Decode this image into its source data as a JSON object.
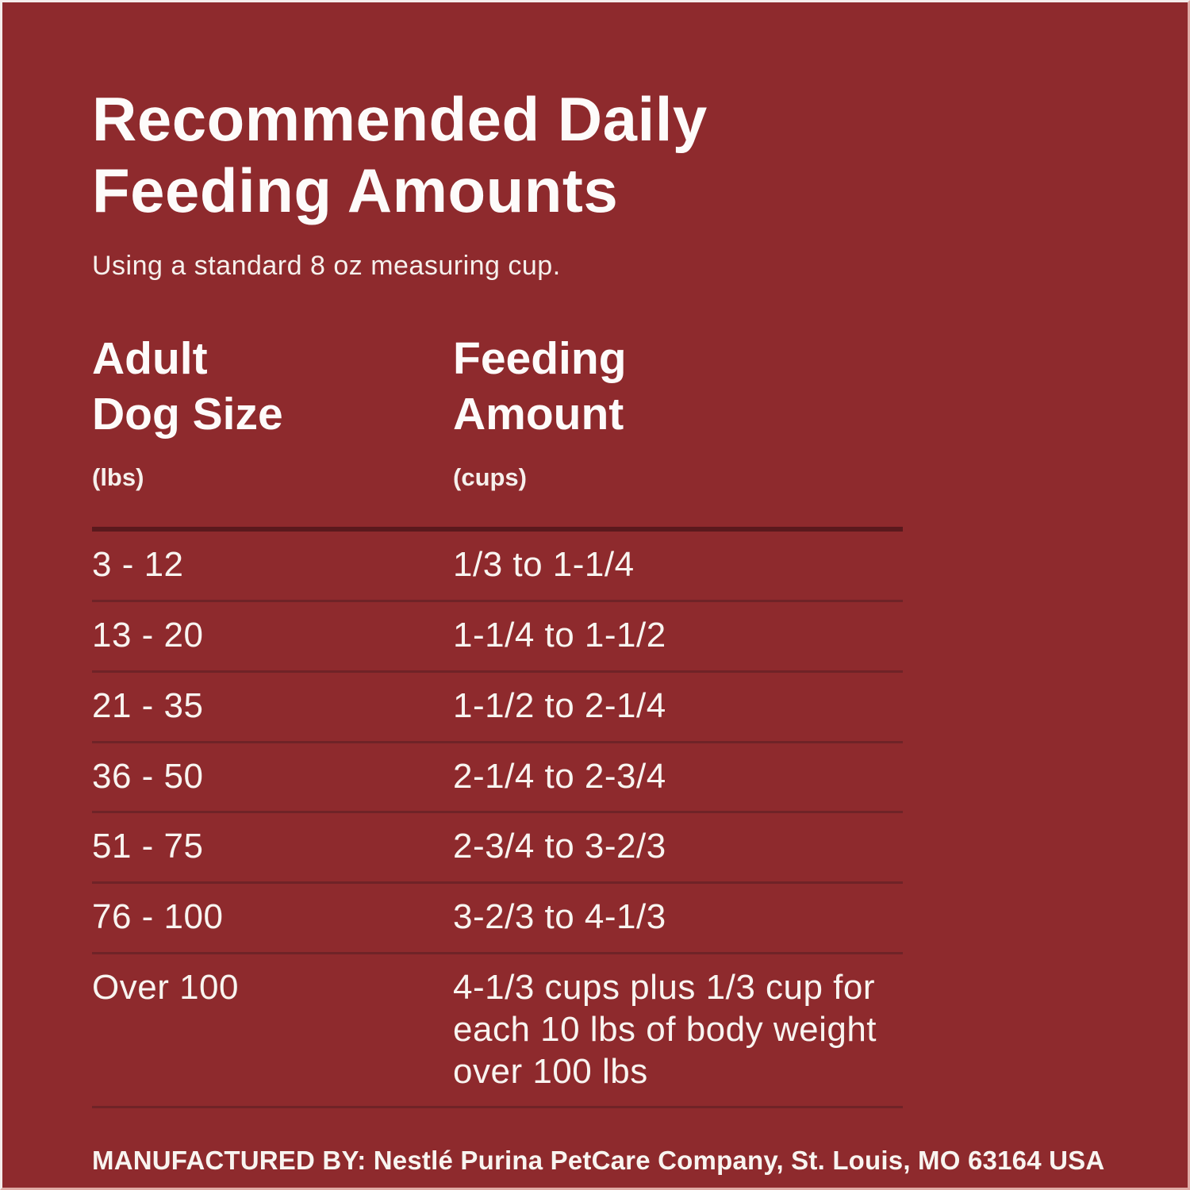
{
  "colors": {
    "background": "#8E2A2D",
    "text": "#FBF8F5",
    "header_rule": "#5A191D",
    "row_rule": "#6F2327",
    "edge_border_light": "#F4EDEB",
    "edge_border_dark": "#DFABA5"
  },
  "header": {
    "title_line1": "Recommended Daily",
    "title_line2": "Feeding Amounts",
    "subtitle": "Using a standard 8 oz measuring cup."
  },
  "table": {
    "columns": [
      {
        "label_line1": "Adult",
        "label_line2": "Dog Size",
        "unit": "(lbs)"
      },
      {
        "label_line1": "Feeding",
        "label_line2": "Amount",
        "unit": "(cups)"
      }
    ],
    "rows": [
      {
        "size": "3 - 12",
        "amount": "1/3 to 1-1/4"
      },
      {
        "size": "13 - 20",
        "amount": "1-1/4 to 1-1/2"
      },
      {
        "size": "21 - 35",
        "amount": "1-1/2 to 2-1/4"
      },
      {
        "size": "36 - 50",
        "amount": "2-1/4 to 2-3/4"
      },
      {
        "size": "51 - 75",
        "amount": "2-3/4 to 3-2/3"
      },
      {
        "size": "76 - 100",
        "amount": "3-2/3 to 4-1/3"
      },
      {
        "size": "Over 100",
        "amount": "4-1/3 cups plus 1/3 cup for each 10 lbs of body weight over 100 lbs"
      }
    ]
  },
  "footer": {
    "text": "MANUFACTURED BY: Nestlé Purina PetCare Company, St. Louis, MO 63164 USA"
  }
}
